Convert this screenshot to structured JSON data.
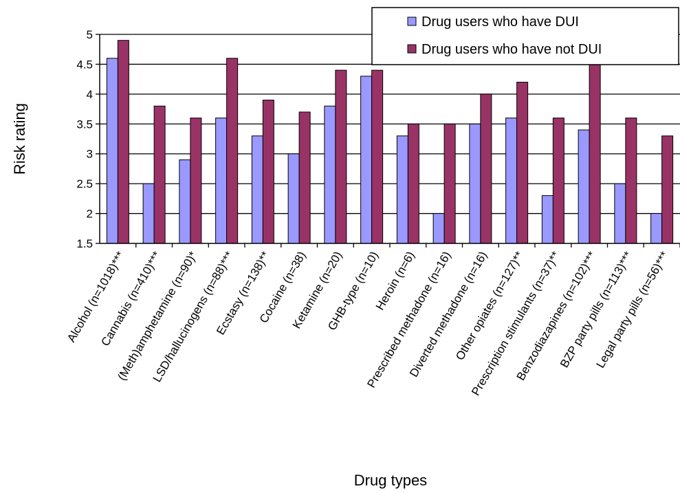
{
  "chart_data": {
    "type": "bar",
    "title": "",
    "xlabel": "Drug types",
    "ylabel": "Risk rating",
    "ylim": [
      1.5,
      5
    ],
    "yticks": [
      "1.5",
      "2",
      "2.5",
      "3",
      "3.5",
      "4",
      "4.5",
      "5"
    ],
    "grid": true,
    "legend_position": "top-right",
    "categories": [
      "Alcohol (n=1018)***",
      "Cannabis (n=410)***",
      "(Meth)amphetamine (n=90)*",
      "LSD/hallucinogens (n=88)***",
      "Ecstasy (n=138)**",
      "Cocaine (n=38)",
      "Ketamine (n=20)",
      "GHB-type (n=10)",
      "Heroin (n=6)",
      "Prescribed methadone (n=16)",
      "Diverted methadone (n=16)",
      "Other opiates (n=127)**",
      "Prescription stimulants (n=37)**",
      "Benzodiazapines (n=102)***",
      "BZP party pills (n=113)***",
      "Legal party pills (n=56)***"
    ],
    "series": [
      {
        "name": "Drug users who have DUI",
        "color": "#9999FF",
        "values": [
          4.6,
          2.5,
          2.9,
          3.6,
          3.3,
          3.0,
          3.8,
          4.3,
          3.3,
          2.0,
          3.5,
          3.6,
          2.3,
          3.4,
          2.5,
          2.0
        ]
      },
      {
        "name": "Drug users who have not DUI",
        "color": "#993366",
        "values": [
          4.9,
          3.8,
          3.6,
          4.6,
          3.9,
          3.7,
          4.4,
          4.4,
          3.5,
          3.5,
          4.0,
          4.2,
          3.6,
          4.5,
          3.6,
          3.3
        ]
      }
    ]
  }
}
